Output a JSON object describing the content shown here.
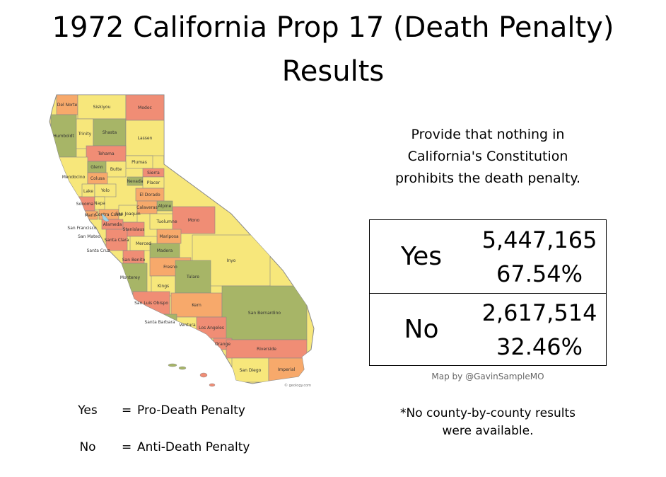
{
  "title": {
    "line1": "1972 California Prop 17 (Death Penalty)",
    "line2": "Results"
  },
  "description": {
    "line1": "Provide that nothing in",
    "line2": "California's Constitution",
    "line3": "prohibits the death penalty."
  },
  "results": {
    "yes": {
      "label": "Yes",
      "votes": "5,447,165",
      "percent": "67.54%"
    },
    "no": {
      "label": "No",
      "votes": "2,617,514",
      "percent": "32.46%"
    }
  },
  "map_credit": "Map by @GavinSampleMO",
  "legend": [
    {
      "key": "Yes",
      "sep": "=",
      "meaning": "Pro-Death Penalty"
    },
    {
      "key": "No",
      "sep": "=",
      "meaning": "Anti-Death Penalty"
    }
  ],
  "note": {
    "line1": "*No county-by-county results",
    "line2": "were available."
  },
  "map": {
    "watermark": "© geology.com",
    "colors": {
      "yellow": "#f7e77b",
      "green": "#a7b567",
      "orange": "#f7a96b",
      "salmon": "#f08d75",
      "outline": "#888888",
      "water": "#9fd2e6"
    },
    "counties": [
      {
        "name": "Del Norte",
        "color": "orange"
      },
      {
        "name": "Siskiyou",
        "color": "yellow"
      },
      {
        "name": "Modoc",
        "color": "salmon"
      },
      {
        "name": "Humboldt",
        "color": "green"
      },
      {
        "name": "Trinity",
        "color": "yellow"
      },
      {
        "name": "Shasta",
        "color": "green"
      },
      {
        "name": "Lassen",
        "color": "yellow"
      },
      {
        "name": "Tehama",
        "color": "salmon"
      },
      {
        "name": "Plumas",
        "color": "yellow"
      },
      {
        "name": "Mendocino",
        "color": "yellow"
      },
      {
        "name": "Glenn",
        "color": "green"
      },
      {
        "name": "Butte",
        "color": "yellow"
      },
      {
        "name": "Sierra",
        "color": "salmon"
      },
      {
        "name": "Colusa",
        "color": "orange"
      },
      {
        "name": "Nevada",
        "color": "green"
      },
      {
        "name": "Placer",
        "color": "yellow"
      },
      {
        "name": "Lake",
        "color": "yellow"
      },
      {
        "name": "Yolo",
        "color": "yellow"
      },
      {
        "name": "El Dorado",
        "color": "orange"
      },
      {
        "name": "Alpine",
        "color": "green"
      },
      {
        "name": "Sonoma",
        "color": "salmon"
      },
      {
        "name": "Napa",
        "color": "yellow"
      },
      {
        "name": "Marin",
        "color": "orange"
      },
      {
        "name": "Contra Costa",
        "color": "orange"
      },
      {
        "name": "San Joaquin",
        "color": "yellow"
      },
      {
        "name": "Calaveras",
        "color": "orange"
      },
      {
        "name": "Tuolumne",
        "color": "yellow"
      },
      {
        "name": "Mono",
        "color": "salmon"
      },
      {
        "name": "Alameda",
        "color": "salmon"
      },
      {
        "name": "Stanislaus",
        "color": "salmon"
      },
      {
        "name": "Mariposa",
        "color": "orange"
      },
      {
        "name": "San Francisco",
        "color": "yellow"
      },
      {
        "name": "San Mateo",
        "color": "yellow"
      },
      {
        "name": "Santa Cruz",
        "color": "yellow"
      },
      {
        "name": "Santa Clara",
        "color": "salmon"
      },
      {
        "name": "Merced",
        "color": "yellow"
      },
      {
        "name": "Madera",
        "color": "green"
      },
      {
        "name": "Fresno",
        "color": "orange"
      },
      {
        "name": "Inyo",
        "color": "yellow"
      },
      {
        "name": "San Benito",
        "color": "salmon"
      },
      {
        "name": "Monterey",
        "color": "green"
      },
      {
        "name": "Kings",
        "color": "yellow"
      },
      {
        "name": "Tulare",
        "color": "green"
      },
      {
        "name": "San Luis Obispo",
        "color": "salmon"
      },
      {
        "name": "Kern",
        "color": "orange"
      },
      {
        "name": "San Bernardino",
        "color": "green"
      },
      {
        "name": "Santa Barbara",
        "color": "green"
      },
      {
        "name": "Ventura",
        "color": "yellow"
      },
      {
        "name": "Los Angeles",
        "color": "salmon"
      },
      {
        "name": "Orange",
        "color": "salmon"
      },
      {
        "name": "Riverside",
        "color": "salmon"
      },
      {
        "name": "San Diego",
        "color": "yellow"
      },
      {
        "name": "Imperial",
        "color": "orange"
      }
    ]
  }
}
